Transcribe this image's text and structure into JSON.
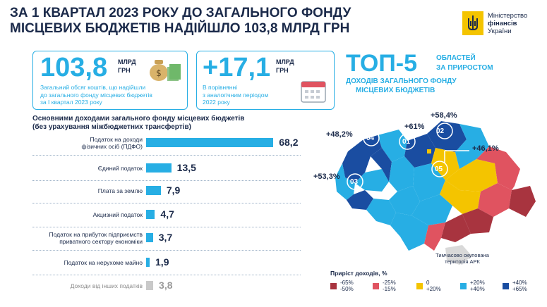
{
  "header": {
    "title_line1": "ЗА 1 КВАРТАЛ 2023 РОКУ ДО ЗАГАЛЬНОГО ФОНДУ",
    "title_line2": "МІСЦЕВИХ БЮДЖЕТІВ НАДІЙШЛО 103,8 МЛРД ГРН",
    "logo_line1": "Міністерство",
    "logo_line2": "фінансів",
    "logo_line3": "України"
  },
  "card_total": {
    "value": "103,8",
    "unit_line1": "МЛРД",
    "unit_line2": "ГРН",
    "text_line1": "Загальний обсяг коштів, що надійшли",
    "text_line2": "до загального фонду місцевих бюджетів",
    "text_line3": "за І квартал 2023 року",
    "icon": "money-bag-icon"
  },
  "card_growth": {
    "value": "+17,1",
    "unit_line1": "МЛРД",
    "unit_line2": "ГРН",
    "text_line1": "В порівнянні",
    "text_line2": "з аналогічним періодом",
    "text_line3": "2022 року",
    "icon": "calendar-icon"
  },
  "top5": {
    "big": "ТОП-5",
    "line1": "ОБЛАСТЕЙ",
    "line2": "ЗА ПРИРОСТОМ",
    "line3": "ДОХОДІВ ЗАГАЛЬНОГО ФОНДУ",
    "line4": "МІСЦЕВИХ БЮДЖЕТІВ"
  },
  "chart_data": {
    "type": "bar",
    "title_line1": "Основними доходами загального фонду місцевих бюджетів",
    "title_line2": "(без урахування міжбюджетних трансфертів)",
    "categories": [
      [
        "Податок на доходи",
        "фізичних осіб (ПДФО)"
      ],
      [
        "Єдиний податок"
      ],
      [
        "Плата за землю"
      ],
      [
        "Акцизний податок"
      ],
      [
        "Податок на прибуток підприємств",
        "приватного сектору економіки"
      ],
      [
        "Податок на нерухоме майно"
      ],
      [
        "Доходи від інших податків"
      ]
    ],
    "values": [
      68.2,
      13.5,
      7.9,
      4.7,
      3.7,
      1.9,
      3.8
    ],
    "value_labels": [
      "68,2",
      "13,5",
      "7,9",
      "4,7",
      "3,7",
      "1,9",
      "3,8"
    ],
    "highlight": [
      false,
      false,
      false,
      false,
      false,
      false,
      true
    ],
    "colors": {
      "bar": "#27aee4",
      "other": "#c9c9c9"
    }
  },
  "map": {
    "labels": [
      {
        "text": "+58,4%",
        "rank": "02"
      },
      {
        "text": "+61%",
        "rank": "01"
      },
      {
        "text": "+48,2%",
        "rank": "04"
      },
      {
        "text": "+46,1%",
        "rank": "05"
      },
      {
        "text": "+53,3%",
        "rank": "03"
      }
    ],
    "occupied_line1": "Тимчасово окупована",
    "occupied_line2": "територія АРК"
  },
  "legend": {
    "title": "Приріст доходів, %",
    "items": [
      {
        "top": "-65%",
        "bottom": "-50%",
        "color": "#a8343f"
      },
      {
        "top": "-25%",
        "bottom": "-15%",
        "color": "#e05360"
      },
      {
        "top": "0",
        "bottom": "+20%",
        "color": "#f4c400"
      },
      {
        "top": "+20%",
        "bottom": "+40%",
        "color": "#27aee4"
      },
      {
        "top": "+40%",
        "bottom": "+65%",
        "color": "#1a4da1"
      }
    ]
  }
}
